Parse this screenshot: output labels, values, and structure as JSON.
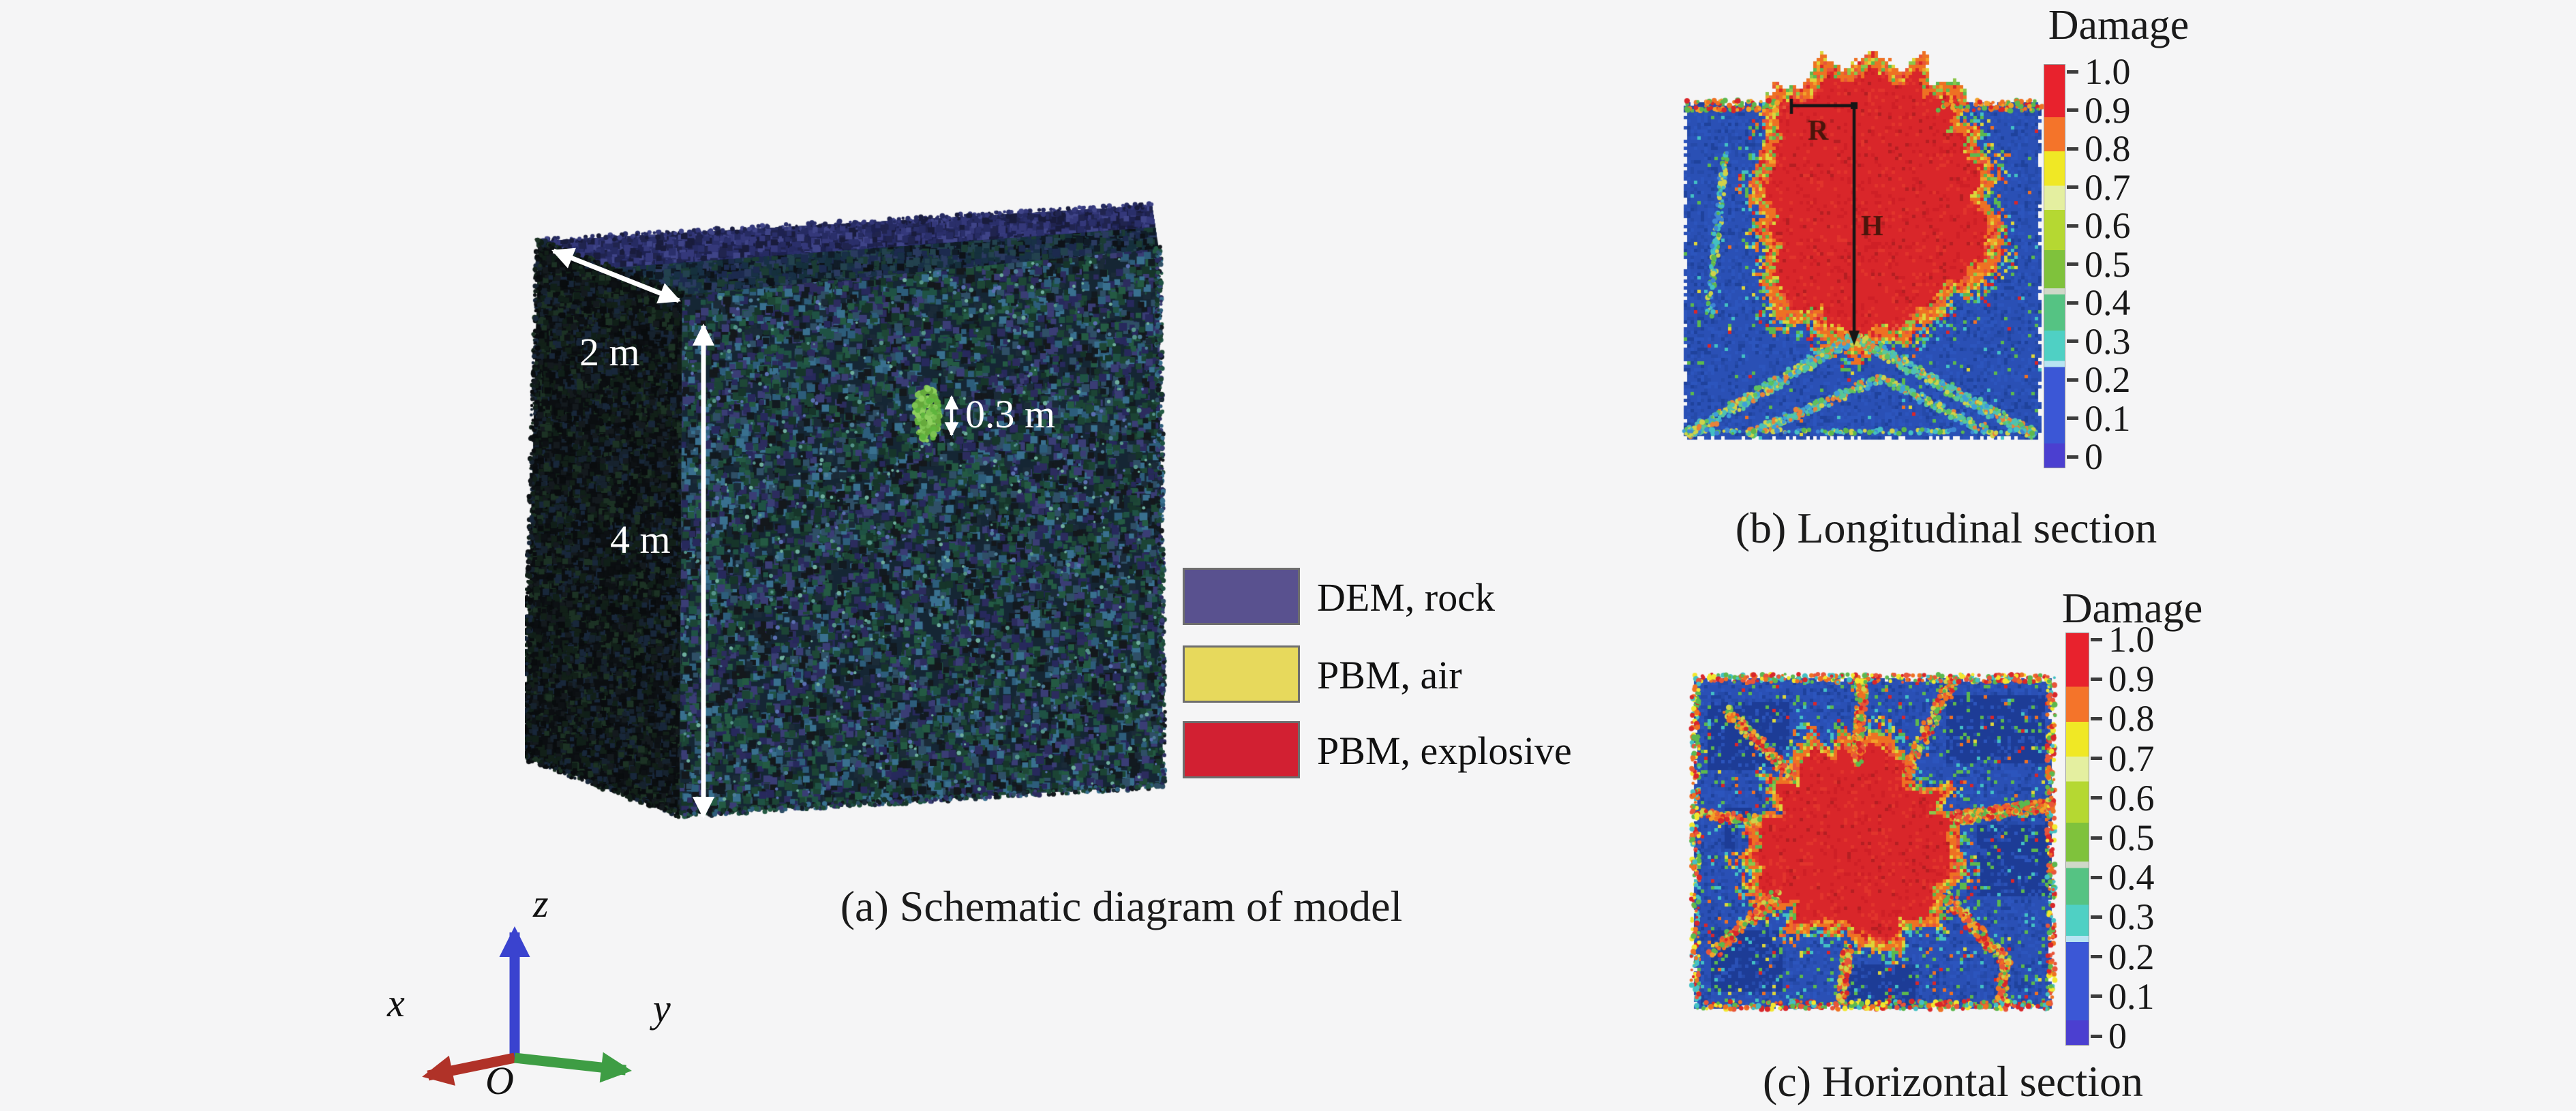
{
  "colors": {
    "background": "#f5f5f6",
    "colormap_bands": [
      {
        "color": "#e8222d",
        "frac": 0.13
      },
      {
        "color": "#f4742a",
        "frac": 0.085
      },
      {
        "color": "#f0e825",
        "frac": 0.085
      },
      {
        "color": "#e4efa0",
        "frac": 0.06
      },
      {
        "color": "#b5d832",
        "frac": 0.1
      },
      {
        "color": "#7fc23c",
        "frac": 0.095
      },
      {
        "color": "#cfd8c8",
        "frac": 0.015
      },
      {
        "color": "#55c383",
        "frac": 0.09
      },
      {
        "color": "#4fd0c4",
        "frac": 0.075
      },
      {
        "color": "#b8e4f2",
        "frac": 0.015
      },
      {
        "color": "#3b57d6",
        "frac": 0.19
      },
      {
        "color": "#4b3fd0",
        "frac": 0.06
      }
    ],
    "damage": {
      "red": "#d9262a",
      "red2": "#cf1f26",
      "red3": "#e2342c",
      "redDark": "#b51e22",
      "orange": "#ee7123",
      "orange2": "#f2a12a",
      "salmon": "#e8553a",
      "yellow": "#ddd53a",
      "green": "#5cb84e",
      "green2": "#8cc64a",
      "cyan": "#43c0c4",
      "blue": "#2a50b5",
      "blue2": "#2c55bd",
      "blue3": "#254aa9",
      "blue4": "#1f429c",
      "blueDark": "#1d3c96",
      "blueLight": "#3f85d6"
    },
    "crack_palettes": {
      "bCrack": [
        "#4ec0b8",
        "#5fc15f",
        "#cfd24a",
        "#3fa0d8",
        "#e8823a",
        "#57c79a"
      ],
      "cCrack": [
        "#ee7123",
        "#d9262a",
        "#f2a12a",
        "#5cb84e",
        "#e8553a",
        "#cfd24a"
      ],
      "warm": [
        "#d9262a",
        "#ee7123",
        "#5cb84e",
        "#f2a12a"
      ],
      "cool": [
        "#43c0c4",
        "#5cb84e",
        "#3f85d6",
        "#cfd24a"
      ],
      "border": [
        "#d9262a",
        "#ee7123",
        "#5cb84e",
        "#43c0c4",
        "#f2e72e",
        "#e8553a"
      ]
    },
    "block": {
      "front": [
        "#1c4435",
        "#245a43",
        "#2d5d7b",
        "#39708f",
        "#27295c",
        "#3a3d75",
        "#121a20",
        "#1b2b38",
        "#2f4f66",
        "#16352a",
        "#1e4736",
        "#2c2c5e",
        "#14181c",
        "#1f5244"
      ],
      "top": [
        "#101c28",
        "#15303c",
        "#1b3c34",
        "#1c2a4e",
        "#0d1218",
        "#23424e",
        "#2a3a60",
        "#183046"
      ],
      "band": [
        "#262b62",
        "#34387a",
        "#191c3c",
        "#3f4488",
        "#2a2f6a",
        "#20244e"
      ],
      "left": [
        "#0d1114",
        "#141a1e",
        "#101f18",
        "#16222e",
        "#090c0e",
        "#1c3224",
        "#18273a",
        "#122018",
        "#0b0e11"
      ],
      "bright": [
        "#4d7d96",
        "#55948a",
        "#5a6fb0",
        "#6fae9e"
      ],
      "marker": [
        "#7dc352",
        "#8ed05e",
        "#66aa3c",
        "#5fb53e"
      ]
    },
    "annotation_line": "#161616",
    "annotation_text": "#4a150b",
    "dimension_text": "#ffffff",
    "axis": {
      "x": "#b03228",
      "y": "#3e9d44",
      "z": "#3a43cf"
    }
  },
  "panel_a": {
    "caption": "(a) Schematic diagram of model",
    "dimensions": {
      "depth": "2 m",
      "height": "4 m",
      "charge": "0.3 m"
    },
    "legend": [
      {
        "label": "DEM, rock",
        "color": "#59518f"
      },
      {
        "label": "PBM, air",
        "color": "#e7d95c"
      },
      {
        "label": "PBM, explosive",
        "color": "#d22032"
      }
    ],
    "axes": {
      "x": "x",
      "y": "y",
      "z": "z",
      "origin": "O"
    }
  },
  "panel_b": {
    "caption": "(b) Longitudinal section",
    "colorbar_title": "Damage",
    "ticks": [
      "1.0",
      "0.9",
      "0.8",
      "0.7",
      "0.6",
      "0.5",
      "0.4",
      "0.3",
      "0.2",
      "0.1",
      "0"
    ],
    "annotations": {
      "radius": "R",
      "height": "H"
    }
  },
  "panel_c": {
    "caption": "(c) Horizontal section",
    "colorbar_title": "Damage",
    "ticks": [
      "1.0",
      "0.9",
      "0.8",
      "0.7",
      "0.6",
      "0.5",
      "0.4",
      "0.3",
      "0.2",
      "0.1",
      "0"
    ]
  }
}
